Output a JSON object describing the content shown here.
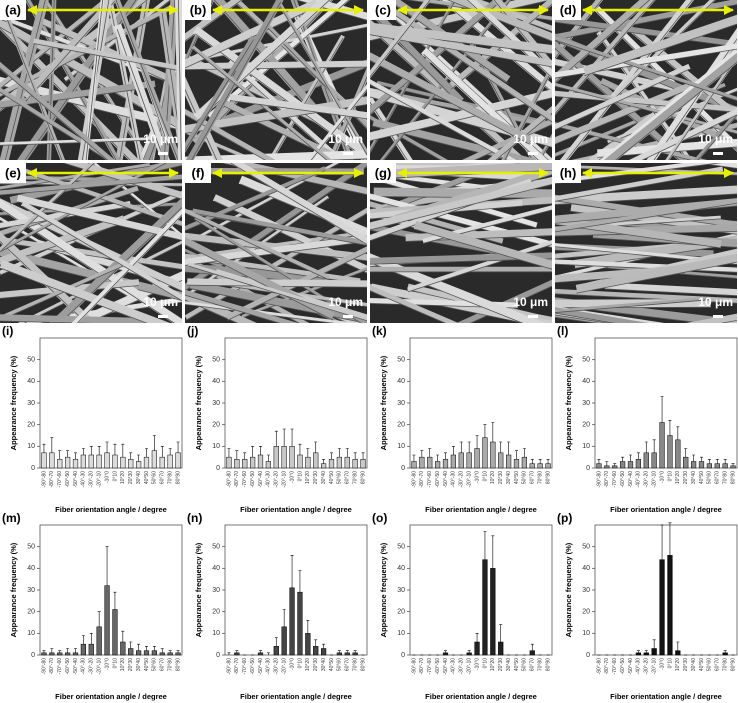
{
  "images": [
    {
      "label": "(a)",
      "scale": "10 μm"
    },
    {
      "label": "(b)",
      "scale": "10 μm"
    },
    {
      "label": "(c)",
      "scale": "10 μm"
    },
    {
      "label": "(d)",
      "scale": "10 μm"
    },
    {
      "label": "(e)",
      "scale": "10 μm"
    },
    {
      "label": "(f)",
      "scale": "10 μm"
    },
    {
      "label": "(g)",
      "scale": "10 μm"
    },
    {
      "label": "(h)",
      "scale": "10 μm"
    }
  ],
  "chart_data": [
    {
      "type": "bar",
      "panel": "(i)",
      "ylabel": "Appearance frequency (%)",
      "xlabel": "Fiber orientation angle / degree",
      "color": "#dcdcdc",
      "ylim": [
        0,
        60
      ],
      "yticks": [
        0,
        10,
        20,
        30,
        40,
        50
      ],
      "categories": [
        "-90°-80",
        "-80°-70",
        "-70°-60",
        "-60°-50",
        "-50°-40",
        "-40°-30",
        "-30°-20",
        "-20°-10",
        "-10°0",
        "0°10",
        "10°20",
        "20°30",
        "30°40",
        "40°50",
        "50°60",
        "60°70",
        "70°80",
        "80°90"
      ],
      "values": [
        7,
        7,
        4,
        5,
        4,
        6,
        6,
        6,
        7,
        6,
        5,
        4,
        3,
        5,
        8,
        5,
        6,
        7
      ],
      "errors": [
        4,
        7,
        4,
        3,
        3,
        3,
        4,
        4,
        5,
        5,
        6,
        3,
        3,
        4,
        7,
        5,
        3,
        5
      ]
    },
    {
      "type": "bar",
      "panel": "(j)",
      "ylabel": "Appearance frequency (%)",
      "xlabel": "Fiber orientation angle / degree",
      "color": "#c8c8c8",
      "ylim": [
        0,
        60
      ],
      "yticks": [
        0,
        10,
        20,
        30,
        40,
        50
      ],
      "categories": [
        "-90°-80",
        "-80°-70",
        "-70°-60",
        "-60°-50",
        "-50°-40",
        "-40°-30",
        "-30°-20",
        "-20°-10",
        "-10°0",
        "0°10",
        "10°20",
        "20°30",
        "30°40",
        "40°50",
        "50°60",
        "60°70",
        "70°80",
        "80°90"
      ],
      "values": [
        5,
        4,
        4,
        5,
        6,
        3,
        10,
        10,
        10,
        6,
        5,
        7,
        2,
        4,
        5,
        5,
        4,
        4
      ],
      "errors": [
        4,
        4,
        3,
        5,
        4,
        3,
        7,
        8,
        8,
        5,
        4,
        5,
        2,
        3,
        4,
        4,
        3,
        3
      ]
    },
    {
      "type": "bar",
      "panel": "(k)",
      "ylabel": "Appearance frequency (%)",
      "xlabel": "Fiber orientation angle / degree",
      "color": "#aaaaaa",
      "ylim": [
        0,
        60
      ],
      "yticks": [
        0,
        10,
        20,
        30,
        40,
        50
      ],
      "categories": [
        "-90°-80",
        "-80°-70",
        "-70°-60",
        "-60°-50",
        "-50°-40",
        "-40°-30",
        "-30°-20",
        "-20°-10",
        "-10°0",
        "0°10",
        "10°20",
        "20°30",
        "30°40",
        "40°50",
        "50°60",
        "60°70",
        "70°80",
        "80°90"
      ],
      "values": [
        3,
        5,
        5,
        3,
        4,
        6,
        7,
        7,
        9,
        14,
        12,
        7,
        6,
        4,
        5,
        2,
        2,
        2
      ],
      "errors": [
        3,
        3,
        4,
        3,
        3,
        4,
        5,
        5,
        6,
        6,
        9,
        5,
        6,
        4,
        4,
        2,
        2,
        2
      ]
    },
    {
      "type": "bar",
      "panel": "(l)",
      "ylabel": "Appearance frequency (%)",
      "xlabel": "Fiber orientation angle / degree",
      "color": "#888888",
      "ylim": [
        0,
        60
      ],
      "yticks": [
        0,
        10,
        20,
        30,
        40,
        50
      ],
      "categories": [
        "-90°-80",
        "-80°-70",
        "-70°-60",
        "-60°-50",
        "-50°-40",
        "-40°-30",
        "-30°-20",
        "-20°-10",
        "-10°0",
        "0°10",
        "10°20",
        "20°30",
        "30°40",
        "40°50",
        "50°60",
        "60°70",
        "70°80",
        "80°90"
      ],
      "values": [
        2,
        1,
        1,
        3,
        3,
        4,
        7,
        7,
        21,
        15,
        13,
        5,
        3,
        3,
        2,
        2,
        2,
        1
      ],
      "errors": [
        2,
        2,
        1,
        2,
        3,
        3,
        5,
        6,
        12,
        7,
        6,
        4,
        3,
        2,
        2,
        2,
        2,
        1
      ]
    },
    {
      "type": "bar",
      "panel": "(m)",
      "ylabel": "Appearance frequency (%)",
      "xlabel": "Fiber orientation angle / degree",
      "color": "#666666",
      "ylim": [
        0,
        60
      ],
      "yticks": [
        0,
        10,
        20,
        30,
        40,
        50
      ],
      "categories": [
        "-90°-80",
        "-80°-70",
        "-70°-60",
        "-60°-50",
        "-50°-40",
        "-40°-30",
        "-30°-20",
        "-20°-10",
        "-10°0",
        "0°10",
        "10°20",
        "20°30",
        "30°40",
        "40°50",
        "50°60",
        "60°70",
        "70°80",
        "80°90"
      ],
      "values": [
        1,
        1,
        1,
        1,
        1,
        5,
        5,
        13,
        32,
        21,
        6,
        3,
        2,
        2,
        2,
        1,
        1,
        1
      ],
      "errors": [
        1,
        2,
        1,
        2,
        2,
        4,
        5,
        7,
        18,
        8,
        5,
        3,
        3,
        2,
        2,
        2,
        1,
        1
      ]
    },
    {
      "type": "bar",
      "panel": "(n)",
      "ylabel": "Appearance frequency (%)",
      "xlabel": "Fiber orientation angle / degree",
      "color": "#444444",
      "ylim": [
        0,
        60
      ],
      "yticks": [
        0,
        10,
        20,
        30,
        40,
        50
      ],
      "categories": [
        "-90°-80",
        "-80°-70",
        "-70°-60",
        "-60°-50",
        "-50°-40",
        "-40°-30",
        "-30°-20",
        "-20°-10",
        "-10°0",
        "0°10",
        "10°20",
        "20°30",
        "30°40",
        "40°50",
        "50°60",
        "60°70",
        "70°80",
        "80°90"
      ],
      "values": [
        0,
        1,
        0,
        0,
        1,
        0,
        4,
        13,
        31,
        29,
        10,
        4,
        3,
        0,
        1,
        1,
        1,
        0
      ],
      "errors": [
        1,
        1,
        0,
        0,
        1,
        1,
        4,
        8,
        15,
        10,
        6,
        3,
        2,
        0,
        1,
        1,
        1,
        0
      ]
    },
    {
      "type": "bar",
      "panel": "(o)",
      "ylabel": "Appearance frequency (%)",
      "xlabel": "Fiber orientation angle / degree",
      "color": "#222222",
      "ylim": [
        0,
        60
      ],
      "yticks": [
        0,
        10,
        20,
        30,
        40,
        50
      ],
      "categories": [
        "-90°-80",
        "-80°-70",
        "-70°-60",
        "-60°-50",
        "-50°-40",
        "-40°-30",
        "-30°-20",
        "-20°-10",
        "-10°0",
        "0°10",
        "10°20",
        "20°30",
        "30°40",
        "40°50",
        "50°60",
        "60°70",
        "70°80",
        "80°90"
      ],
      "values": [
        0,
        0,
        0,
        0,
        1,
        0,
        0,
        1,
        6,
        44,
        40,
        6,
        0,
        0,
        0,
        2,
        0,
        0
      ],
      "errors": [
        0,
        0,
        0,
        0,
        1,
        0,
        0,
        1,
        4,
        13,
        15,
        8,
        0,
        0,
        0,
        3,
        0,
        0
      ]
    },
    {
      "type": "bar",
      "panel": "(p)",
      "ylabel": "Appearance frequency (%)",
      "xlabel": "Fiber orientation angle / degree",
      "color": "#111111",
      "ylim": [
        0,
        60
      ],
      "yticks": [
        0,
        10,
        20,
        30,
        40,
        50
      ],
      "categories": [
        "-90°-80",
        "-80°-70",
        "-70°-60",
        "-60°-50",
        "-50°-40",
        "-40°-30",
        "-30°-20",
        "-20°-10",
        "-10°0",
        "0°10",
        "10°20",
        "20°30",
        "30°40",
        "40°50",
        "50°60",
        "60°70",
        "70°80",
        "80°90"
      ],
      "values": [
        0,
        0,
        0,
        0,
        0,
        1,
        1,
        3,
        44,
        46,
        2,
        0,
        0,
        0,
        0,
        0,
        1,
        0
      ],
      "errors": [
        0,
        0,
        0,
        0,
        0,
        1,
        1,
        4,
        16,
        15,
        4,
        0,
        0,
        0,
        0,
        0,
        1,
        0
      ]
    }
  ]
}
